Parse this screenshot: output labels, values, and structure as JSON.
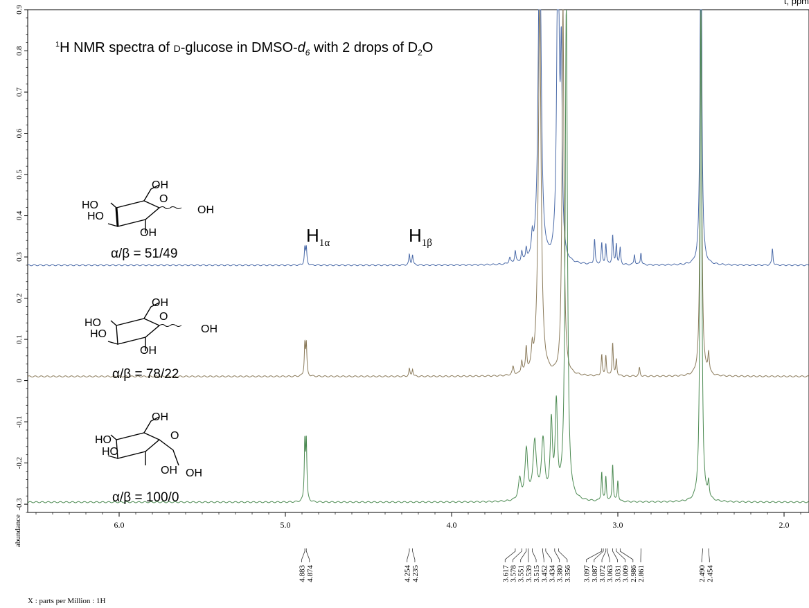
{
  "title": {
    "prefix": "1",
    "text1": "H NMR spectra of ",
    "smallcap": "D",
    "text2": "-glucose in DMSO-",
    "italic": "d",
    "italic_sub": "6",
    "text3": " with 2 drops of D",
    "sub": "2",
    "text4": "O"
  },
  "top_right_fragment": "t, ppm",
  "peak_labels": [
    {
      "main": "H",
      "sub": "1α"
    },
    {
      "main": "H",
      "sub": "1β"
    }
  ],
  "samples": [
    {
      "ratio_label": "α/β = 51/49",
      "color": "#4a6aa8"
    },
    {
      "ratio_label": "α/β = 78/22",
      "color": "#8a7a5a"
    },
    {
      "ratio_label": "α/β = 100/0",
      "color": "#4c8a52"
    }
  ],
  "molecule_labels": {
    "oh_top": "OH",
    "ho_left": "HO",
    "ho_left2": "HO",
    "oh_bottom": "OH",
    "oh_anomeric": "OH",
    "o_ring": "O"
  },
  "chart_data": {
    "type": "line",
    "title": "",
    "xlabel": "X : parts per Million : 1H",
    "ylabel": "abundance",
    "xlim": [
      6.55,
      1.85
    ],
    "ylim": [
      -0.32,
      0.9
    ],
    "x_ticks": [
      "6.0",
      "5.0",
      "4.0",
      "3.0",
      "2.0"
    ],
    "x_tick_values": [
      6.0,
      5.0,
      4.0,
      3.0,
      2.0
    ],
    "y_ticks": [
      "0.9",
      "0.8",
      "0.7",
      "0.6",
      "0.5",
      "0.4",
      "0.3",
      "0.2",
      "0.1",
      "0",
      "-0.1",
      "-0.2",
      "-0.3"
    ],
    "y_tick_values": [
      0.9,
      0.8,
      0.7,
      0.6,
      0.5,
      0.4,
      0.3,
      0.2,
      0.1,
      0,
      -0.1,
      -0.2,
      -0.3
    ],
    "peak_annotations": [
      "4.883",
      "4.874",
      "4.254",
      "4.235",
      "3.617",
      "3.578",
      "3.551",
      "3.539",
      "3.515",
      "3.452",
      "3.434",
      "3.380",
      "3.356",
      "3.097",
      "3.087",
      "3.072",
      "3.063",
      "3.031",
      "3.009",
      "2.986",
      "2.861",
      "2.490",
      "2.454"
    ],
    "peak_annotation_values": [
      4.883,
      4.874,
      4.254,
      4.235,
      3.617,
      3.578,
      3.551,
      3.539,
      3.515,
      3.452,
      3.434,
      3.38,
      3.356,
      3.097,
      3.087,
      3.072,
      3.063,
      3.031,
      3.009,
      2.986,
      2.861,
      2.49,
      2.454
    ],
    "series": [
      {
        "name": "α/β = 51/49",
        "baseline": 0.28,
        "color": "#4a6aa8",
        "peaks": [
          {
            "x": 4.883,
            "h": 0.04,
            "w": 0.004
          },
          {
            "x": 4.874,
            "h": 0.04,
            "w": 0.004
          },
          {
            "x": 4.254,
            "h": 0.025,
            "w": 0.004
          },
          {
            "x": 4.235,
            "h": 0.025,
            "w": 0.004
          },
          {
            "x": 3.65,
            "h": 0.015,
            "w": 0.006
          },
          {
            "x": 3.617,
            "h": 0.03,
            "w": 0.005
          },
          {
            "x": 3.578,
            "h": 0.025,
            "w": 0.005
          },
          {
            "x": 3.551,
            "h": 0.03,
            "w": 0.005
          },
          {
            "x": 3.515,
            "h": 0.05,
            "w": 0.006
          },
          {
            "x": 3.47,
            "h": 0.9,
            "w": 0.01
          },
          {
            "x": 3.36,
            "h": 0.9,
            "w": 0.008
          },
          {
            "x": 3.34,
            "h": 0.45,
            "w": 0.006
          },
          {
            "x": 3.14,
            "h": 0.06,
            "w": 0.004
          },
          {
            "x": 3.097,
            "h": 0.05,
            "w": 0.004
          },
          {
            "x": 3.072,
            "h": 0.05,
            "w": 0.004
          },
          {
            "x": 3.031,
            "h": 0.07,
            "w": 0.004
          },
          {
            "x": 3.009,
            "h": 0.05,
            "w": 0.004
          },
          {
            "x": 2.986,
            "h": 0.04,
            "w": 0.004
          },
          {
            "x": 2.9,
            "h": 0.025,
            "w": 0.004
          },
          {
            "x": 2.861,
            "h": 0.03,
            "w": 0.004
          },
          {
            "x": 2.5,
            "h": 0.9,
            "w": 0.006
          },
          {
            "x": 2.07,
            "h": 0.04,
            "w": 0.004
          }
        ]
      },
      {
        "name": "α/β = 78/22",
        "baseline": 0.01,
        "color": "#8a7a5a",
        "peaks": [
          {
            "x": 4.883,
            "h": 0.075,
            "w": 0.004
          },
          {
            "x": 4.874,
            "h": 0.075,
            "w": 0.004
          },
          {
            "x": 4.254,
            "h": 0.018,
            "w": 0.004
          },
          {
            "x": 4.235,
            "h": 0.018,
            "w": 0.004
          },
          {
            "x": 3.63,
            "h": 0.02,
            "w": 0.006
          },
          {
            "x": 3.578,
            "h": 0.03,
            "w": 0.005
          },
          {
            "x": 3.551,
            "h": 0.06,
            "w": 0.005
          },
          {
            "x": 3.515,
            "h": 0.05,
            "w": 0.006
          },
          {
            "x": 3.47,
            "h": 0.9,
            "w": 0.01
          },
          {
            "x": 3.33,
            "h": 0.9,
            "w": 0.007
          },
          {
            "x": 3.097,
            "h": 0.05,
            "w": 0.004
          },
          {
            "x": 3.072,
            "h": 0.05,
            "w": 0.004
          },
          {
            "x": 3.031,
            "h": 0.08,
            "w": 0.004
          },
          {
            "x": 3.009,
            "h": 0.04,
            "w": 0.004
          },
          {
            "x": 2.87,
            "h": 0.02,
            "w": 0.004
          },
          {
            "x": 2.5,
            "h": 0.9,
            "w": 0.006
          },
          {
            "x": 2.454,
            "h": 0.05,
            "w": 0.005
          }
        ]
      },
      {
        "name": "α/β = 100/0",
        "baseline": -0.295,
        "color": "#4c8a52",
        "peaks": [
          {
            "x": 4.883,
            "h": 0.14,
            "w": 0.004
          },
          {
            "x": 4.874,
            "h": 0.14,
            "w": 0.004
          },
          {
            "x": 3.59,
            "h": 0.05,
            "w": 0.01
          },
          {
            "x": 3.55,
            "h": 0.12,
            "w": 0.01
          },
          {
            "x": 3.5,
            "h": 0.14,
            "w": 0.012
          },
          {
            "x": 3.45,
            "h": 0.14,
            "w": 0.012
          },
          {
            "x": 3.4,
            "h": 0.18,
            "w": 0.008
          },
          {
            "x": 3.37,
            "h": 0.22,
            "w": 0.008
          },
          {
            "x": 3.31,
            "h": 1.2,
            "w": 0.008
          },
          {
            "x": 3.097,
            "h": 0.07,
            "w": 0.004
          },
          {
            "x": 3.072,
            "h": 0.06,
            "w": 0.004
          },
          {
            "x": 3.031,
            "h": 0.09,
            "w": 0.004
          },
          {
            "x": 3.0,
            "h": 0.05,
            "w": 0.004
          },
          {
            "x": 2.5,
            "h": 1.2,
            "w": 0.006
          },
          {
            "x": 2.454,
            "h": 0.04,
            "w": 0.005
          }
        ]
      }
    ]
  }
}
